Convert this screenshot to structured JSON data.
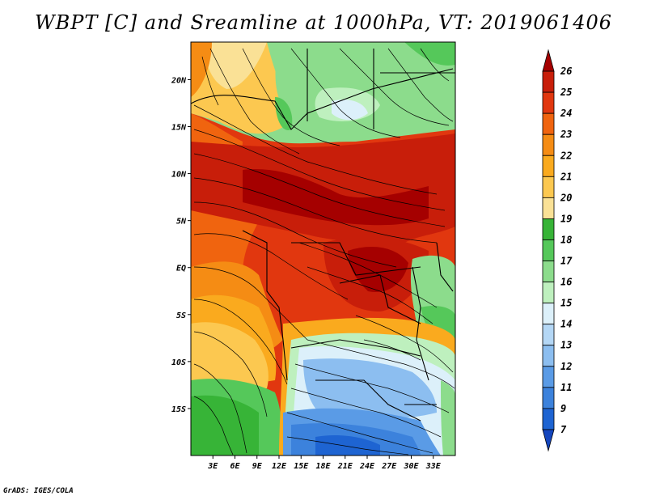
{
  "title": "WBPT [C] and Sreamline at 1000hPa, VT: 2019061406",
  "footer": "GrADS: IGES/COLA",
  "map_data": {
    "lat_range": [
      -20,
      24
    ],
    "lon_range": [
      0,
      36
    ],
    "lat_ticks": [
      {
        "value": 20,
        "label": "20N"
      },
      {
        "value": 15,
        "label": "15N"
      },
      {
        "value": 10,
        "label": "10N"
      },
      {
        "value": 5,
        "label": "5N"
      },
      {
        "value": 0,
        "label": "EQ"
      },
      {
        "value": -5,
        "label": "5S"
      },
      {
        "value": -10,
        "label": "10S"
      },
      {
        "value": -15,
        "label": "15S"
      }
    ],
    "lon_ticks": [
      {
        "value": 3,
        "label": "3E"
      },
      {
        "value": 6,
        "label": "6E"
      },
      {
        "value": 9,
        "label": "9E"
      },
      {
        "value": 12,
        "label": "12E"
      },
      {
        "value": 15,
        "label": "15E"
      },
      {
        "value": 18,
        "label": "18E"
      },
      {
        "value": 21,
        "label": "21E"
      },
      {
        "value": 24,
        "label": "24E"
      },
      {
        "value": 27,
        "label": "27E"
      },
      {
        "value": 30,
        "label": "30E"
      },
      {
        "value": 33,
        "label": "33E"
      }
    ]
  },
  "colorbar": {
    "labels": [
      "26",
      "25",
      "24",
      "23",
      "22",
      "21",
      "20",
      "19",
      "18",
      "17",
      "16",
      "15",
      "14",
      "13",
      "12",
      "11",
      "9",
      "7"
    ],
    "colors": [
      "#a50000",
      "#c81e0a",
      "#e1370f",
      "#f0640f",
      "#f58c14",
      "#faaa1e",
      "#fcc850",
      "#fae196",
      "#37b437",
      "#55c85a",
      "#8cdc8c",
      "#bef0be",
      "#dcf0fa",
      "#b4d7f5",
      "#8cbef0",
      "#5a9be6",
      "#3c82dc",
      "#1e64d2",
      "#1446be"
    ]
  }
}
